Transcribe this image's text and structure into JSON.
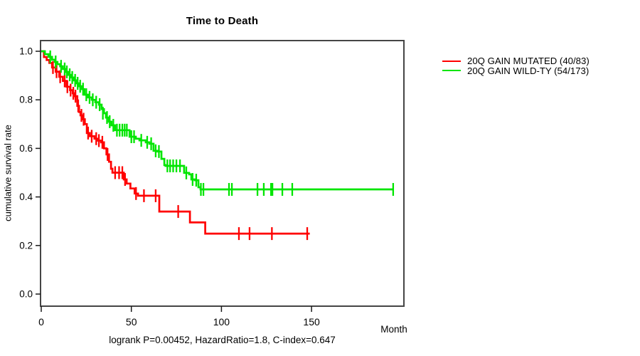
{
  "title": "Time to Death",
  "footnote": "logrank P=0.00452, HazardRatio=1.8, C-index=0.647",
  "axes": {
    "xlabel": "Month",
    "ylabel": "cumulative survival rate",
    "xticks": [
      {
        "value": 0,
        "label": "0"
      },
      {
        "value": 50,
        "label": "50"
      },
      {
        "value": 100,
        "label": "100"
      },
      {
        "value": 150,
        "label": "150"
      }
    ],
    "yticks": [
      {
        "value": 0.0,
        "label": "0.0"
      },
      {
        "value": 0.2,
        "label": "0.2"
      },
      {
        "value": 0.4,
        "label": "0.4"
      },
      {
        "value": 0.6,
        "label": "0.6"
      },
      {
        "value": 0.8,
        "label": "0.8"
      },
      {
        "value": 1.0,
        "label": "1.0"
      }
    ]
  },
  "legend": [
    {
      "label": "20Q GAIN MUTATED (40/83)",
      "color": "#ff0000"
    },
    {
      "label": "20Q GAIN WILD-TY (54/173)",
      "color": "#00e500"
    }
  ],
  "chart_data": {
    "type": "line",
    "subtype": "kaplan-meier-step",
    "title": "Time to Death",
    "xlabel": "Month",
    "ylabel": "cumulative survival rate",
    "xlim": [
      0,
      201
    ],
    "ylim": [
      0,
      1.0
    ],
    "grid": false,
    "legend_position": "right-outside",
    "series": [
      {
        "id": "mutated",
        "name": "20Q GAIN MUTATED (40/83)",
        "color": "#ff0000",
        "events": 40,
        "n": 83,
        "end_time": 149,
        "steps": [
          [
            0,
            1.0
          ],
          [
            1.5,
            0.976
          ],
          [
            3,
            0.964
          ],
          [
            4.5,
            0.952
          ],
          [
            6,
            0.933
          ],
          [
            8,
            0.916
          ],
          [
            10,
            0.895
          ],
          [
            12,
            0.878
          ],
          [
            14,
            0.854
          ],
          [
            16,
            0.84
          ],
          [
            17.5,
            0.827
          ],
          [
            18.5,
            0.815
          ],
          [
            20,
            0.775
          ],
          [
            21,
            0.75
          ],
          [
            21.8,
            0.736
          ],
          [
            23,
            0.72
          ],
          [
            24.2,
            0.7
          ],
          [
            25.3,
            0.663
          ],
          [
            27,
            0.65
          ],
          [
            29.5,
            0.64
          ],
          [
            31.5,
            0.632
          ],
          [
            33.2,
            0.625
          ],
          [
            34.8,
            0.6
          ],
          [
            36.2,
            0.575
          ],
          [
            37.6,
            0.545
          ],
          [
            38.7,
            0.516
          ],
          [
            39.5,
            0.5
          ],
          [
            45.8,
            0.472
          ],
          [
            47.4,
            0.455
          ],
          [
            49.5,
            0.435
          ],
          [
            51.8,
            0.414
          ],
          [
            53.7,
            0.405
          ],
          [
            65.5,
            0.34
          ],
          [
            82.5,
            0.295
          ],
          [
            91,
            0.249
          ]
        ],
        "censors": [
          [
            6.5,
            0.933
          ],
          [
            8.5,
            0.916
          ],
          [
            10.5,
            0.895
          ],
          [
            13,
            0.878
          ],
          [
            14.5,
            0.854
          ],
          [
            16.3,
            0.84
          ],
          [
            17.8,
            0.827
          ],
          [
            19,
            0.815
          ],
          [
            20.5,
            0.775
          ],
          [
            22.3,
            0.736
          ],
          [
            23.5,
            0.72
          ],
          [
            26,
            0.663
          ],
          [
            28,
            0.65
          ],
          [
            30.5,
            0.64
          ],
          [
            32,
            0.632
          ],
          [
            33.9,
            0.625
          ],
          [
            36.8,
            0.575
          ],
          [
            41,
            0.5
          ],
          [
            43.2,
            0.5
          ],
          [
            45,
            0.5
          ],
          [
            46.5,
            0.472
          ],
          [
            52.6,
            0.414
          ],
          [
            57,
            0.405
          ],
          [
            63.5,
            0.405
          ],
          [
            76,
            0.34
          ],
          [
            109.7,
            0.249
          ],
          [
            115.6,
            0.249
          ],
          [
            128,
            0.249
          ],
          [
            147.6,
            0.249
          ]
        ]
      },
      {
        "id": "wildtype",
        "name": "20Q GAIN WILD-TY (54/173)",
        "color": "#00e500",
        "events": 54,
        "n": 173,
        "end_time": 195.3,
        "steps": [
          [
            0,
            1.0
          ],
          [
            2,
            0.988
          ],
          [
            4,
            0.977
          ],
          [
            6,
            0.965
          ],
          [
            7.5,
            0.956
          ],
          [
            9,
            0.947
          ],
          [
            10.5,
            0.938
          ],
          [
            12,
            0.927
          ],
          [
            13.5,
            0.915
          ],
          [
            15,
            0.903
          ],
          [
            16.5,
            0.892
          ],
          [
            18,
            0.88
          ],
          [
            19.5,
            0.868
          ],
          [
            21,
            0.856
          ],
          [
            22.5,
            0.844
          ],
          [
            24,
            0.821
          ],
          [
            26,
            0.81
          ],
          [
            28,
            0.8
          ],
          [
            30,
            0.79
          ],
          [
            32,
            0.78
          ],
          [
            33.5,
            0.762
          ],
          [
            34.8,
            0.745
          ],
          [
            35.9,
            0.727
          ],
          [
            37.5,
            0.71
          ],
          [
            39,
            0.695
          ],
          [
            41,
            0.675
          ],
          [
            49,
            0.648
          ],
          [
            52.5,
            0.64
          ],
          [
            54.5,
            0.633
          ],
          [
            58,
            0.625
          ],
          [
            60,
            0.619
          ],
          [
            62.3,
            0.59
          ],
          [
            64.5,
            0.587
          ],
          [
            66.7,
            0.557
          ],
          [
            68.3,
            0.531
          ],
          [
            69,
            0.528
          ],
          [
            79.3,
            0.499
          ],
          [
            82.1,
            0.493
          ],
          [
            83.3,
            0.472
          ],
          [
            85.2,
            0.469
          ],
          [
            87.2,
            0.44
          ],
          [
            88.4,
            0.431
          ]
        ],
        "censors": [
          [
            5,
            0.977
          ],
          [
            8,
            0.956
          ],
          [
            11,
            0.938
          ],
          [
            13,
            0.927
          ],
          [
            14.2,
            0.915
          ],
          [
            15.8,
            0.903
          ],
          [
            17.2,
            0.892
          ],
          [
            18.8,
            0.88
          ],
          [
            20.2,
            0.868
          ],
          [
            21.6,
            0.856
          ],
          [
            23.2,
            0.844
          ],
          [
            25,
            0.821
          ],
          [
            26.8,
            0.81
          ],
          [
            28.6,
            0.8
          ],
          [
            30.5,
            0.79
          ],
          [
            32.4,
            0.78
          ],
          [
            34.2,
            0.745
          ],
          [
            36.5,
            0.727
          ],
          [
            38,
            0.71
          ],
          [
            40,
            0.695
          ],
          [
            42,
            0.675
          ],
          [
            43.5,
            0.675
          ],
          [
            45,
            0.675
          ],
          [
            46.3,
            0.675
          ],
          [
            47.5,
            0.675
          ],
          [
            50,
            0.648
          ],
          [
            51.5,
            0.648
          ],
          [
            55.5,
            0.633
          ],
          [
            58.8,
            0.625
          ],
          [
            61,
            0.619
          ],
          [
            63.5,
            0.59
          ],
          [
            65.3,
            0.587
          ],
          [
            70,
            0.528
          ],
          [
            71.5,
            0.528
          ],
          [
            73.2,
            0.528
          ],
          [
            75,
            0.528
          ],
          [
            77,
            0.528
          ],
          [
            80.5,
            0.499
          ],
          [
            84,
            0.472
          ],
          [
            86,
            0.469
          ],
          [
            88.6,
            0.431
          ],
          [
            90,
            0.431
          ],
          [
            104.2,
            0.431
          ],
          [
            105.8,
            0.431
          ],
          [
            120,
            0.431
          ],
          [
            123.5,
            0.431
          ],
          [
            127.5,
            0.431
          ],
          [
            128.3,
            0.431
          ],
          [
            133.8,
            0.431
          ],
          [
            139.3,
            0.431
          ],
          [
            195.3,
            0.431
          ]
        ]
      }
    ]
  }
}
